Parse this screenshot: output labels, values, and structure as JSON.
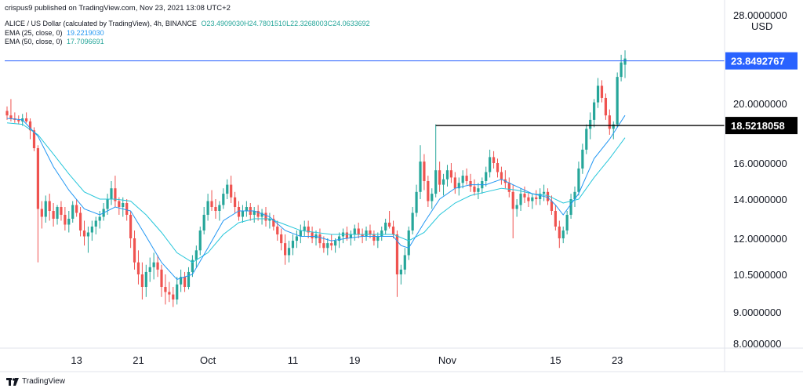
{
  "header": {
    "published": "crispus9 published on TradingView.com, Nov 23, 2021 13:08 UTC+2",
    "title": "ALICE / US Dollar (calculated by TradingView), 4h, BINANCE",
    "ohlc": {
      "open": "O23.4909030",
      "high": "H24.7801510",
      "low": "L22.3268003",
      "close": "C24.0633692"
    },
    "ema25": {
      "label": "EMA (25, close, 0)",
      "value": "19.2219030"
    },
    "ema50": {
      "label": "EMA (50, close, 0)",
      "value": "17.7096691"
    }
  },
  "footer": {
    "brand": "TradingView"
  },
  "colors": {
    "up": "#26a69a",
    "down": "#ef5350",
    "ema25": "#2196f3",
    "ema50": "#26c6da",
    "price_line": "#2962ff",
    "support_line": "#000000"
  },
  "chart_data": {
    "type": "candlestick",
    "currency": "USD",
    "y_ticks": [
      {
        "value": 28,
        "label": "28.0000000"
      },
      {
        "value": 20,
        "label": "20.0000000"
      },
      {
        "value": 16,
        "label": "16.0000000"
      },
      {
        "value": 14,
        "label": "14.0000000"
      },
      {
        "value": 12,
        "label": "12.0000000"
      },
      {
        "value": 10.5,
        "label": "10.5000000"
      },
      {
        "value": 9,
        "label": "9.0000000"
      },
      {
        "value": 8,
        "label": "8.0000000"
      }
    ],
    "x_ticks": [
      {
        "t": 13,
        "label": "13"
      },
      {
        "t": 21,
        "label": "21"
      },
      {
        "t": 30,
        "label": "Oct"
      },
      {
        "t": 41,
        "label": "11"
      },
      {
        "t": 49,
        "label": "19"
      },
      {
        "t": 61,
        "label": "Nov"
      },
      {
        "t": 75,
        "label": "15"
      },
      {
        "t": 83,
        "label": "23"
      }
    ],
    "x_range": [
      4,
      93
    ],
    "price_marker": {
      "value": 23.8492767,
      "label": "23.8492767"
    },
    "support": {
      "value": 18.5218058,
      "label": "18.5218058",
      "t_start": 59.5
    },
    "candles": [
      [
        4.0,
        19.5,
        19.8,
        18.9,
        19.2
      ],
      [
        4.5,
        19.2,
        20.4,
        18.8,
        19.0
      ],
      [
        5.0,
        19.0,
        19.4,
        18.7,
        18.9
      ],
      [
        5.5,
        18.9,
        19.2,
        18.6,
        18.8
      ],
      [
        6.0,
        18.8,
        19.3,
        18.5,
        19.0
      ],
      [
        6.5,
        19.0,
        19.4,
        18.7,
        18.8
      ],
      [
        7.0,
        18.8,
        19.0,
        17.6,
        18.2
      ],
      [
        7.5,
        18.2,
        18.4,
        16.8,
        17.0
      ],
      [
        8.0,
        17.0,
        17.2,
        11.0,
        13.5
      ],
      [
        8.5,
        13.5,
        13.9,
        12.5,
        13.1
      ],
      [
        9.0,
        13.1,
        14.2,
        12.8,
        13.9
      ],
      [
        9.5,
        13.9,
        14.3,
        12.9,
        13.4
      ],
      [
        10.0,
        13.4,
        13.8,
        12.6,
        13.0
      ],
      [
        10.5,
        13.0,
        13.7,
        12.7,
        13.6
      ],
      [
        11.0,
        13.6,
        13.9,
        12.9,
        13.2
      ],
      [
        11.5,
        13.2,
        13.6,
        12.4,
        12.7
      ],
      [
        12.0,
        12.7,
        13.4,
        12.3,
        13.0
      ],
      [
        12.5,
        13.0,
        13.9,
        12.8,
        13.7
      ],
      [
        13.0,
        13.7,
        14.0,
        13.1,
        13.3
      ],
      [
        13.5,
        13.3,
        13.6,
        12.1,
        12.4
      ],
      [
        14.0,
        12.4,
        12.9,
        11.7,
        12.1
      ],
      [
        14.5,
        12.1,
        12.6,
        11.4,
        12.3
      ],
      [
        15.0,
        12.3,
        12.9,
        11.9,
        12.6
      ],
      [
        15.5,
        12.6,
        13.1,
        12.2,
        12.9
      ],
      [
        16.0,
        12.9,
        13.4,
        12.5,
        13.1
      ],
      [
        16.5,
        13.1,
        13.8,
        12.9,
        13.5
      ],
      [
        17.0,
        13.5,
        14.3,
        13.2,
        14.0
      ],
      [
        17.5,
        14.0,
        15.0,
        13.7,
        14.6
      ],
      [
        18.0,
        14.6,
        15.3,
        13.6,
        13.9
      ],
      [
        18.5,
        13.9,
        14.1,
        13.2,
        13.6
      ],
      [
        19.0,
        13.6,
        14.1,
        13.1,
        13.8
      ],
      [
        19.5,
        13.8,
        14.0,
        12.9,
        13.2
      ],
      [
        20.0,
        13.2,
        13.4,
        11.6,
        12.0
      ],
      [
        20.5,
        12.0,
        12.4,
        10.7,
        11.0
      ],
      [
        21.0,
        11.0,
        11.5,
        10.1,
        10.5
      ],
      [
        21.5,
        10.5,
        11.0,
        9.5,
        10.0
      ],
      [
        22.0,
        10.0,
        10.9,
        9.6,
        10.6
      ],
      [
        22.5,
        10.6,
        11.2,
        10.2,
        10.8
      ],
      [
        23.0,
        10.8,
        11.4,
        10.3,
        11.0
      ],
      [
        23.5,
        11.0,
        11.3,
        10.4,
        10.7
      ],
      [
        24.0,
        10.7,
        10.9,
        9.6,
        10.0
      ],
      [
        24.5,
        10.0,
        10.5,
        9.3,
        9.8
      ],
      [
        25.0,
        9.8,
        10.2,
        9.4,
        9.7
      ],
      [
        25.5,
        9.7,
        10.0,
        9.2,
        9.5
      ],
      [
        26.0,
        9.5,
        10.4,
        9.3,
        10.1
      ],
      [
        26.5,
        10.1,
        10.7,
        9.8,
        10.4
      ],
      [
        27.0,
        10.4,
        10.6,
        9.8,
        10.0
      ],
      [
        27.5,
        10.0,
        10.8,
        9.9,
        10.6
      ],
      [
        28.0,
        10.6,
        11.3,
        10.4,
        11.1
      ],
      [
        28.5,
        11.1,
        11.7,
        10.8,
        11.5
      ],
      [
        29.0,
        11.5,
        12.6,
        11.3,
        12.4
      ],
      [
        29.5,
        12.4,
        13.6,
        12.2,
        13.2
      ],
      [
        30.0,
        13.2,
        14.3,
        12.9,
        13.9
      ],
      [
        30.5,
        13.9,
        14.5,
        13.4,
        13.6
      ],
      [
        31.0,
        13.6,
        14.0,
        13.0,
        13.4
      ],
      [
        31.5,
        13.4,
        13.9,
        12.9,
        13.7
      ],
      [
        32.0,
        13.7,
        14.6,
        13.5,
        14.3
      ],
      [
        32.5,
        14.3,
        15.1,
        14.0,
        14.8
      ],
      [
        33.0,
        14.8,
        15.3,
        13.8,
        14.1
      ],
      [
        33.5,
        14.1,
        14.4,
        13.3,
        13.6
      ],
      [
        34.0,
        13.6,
        13.9,
        12.9,
        13.1
      ],
      [
        34.5,
        13.1,
        13.7,
        12.8,
        13.4
      ],
      [
        35.0,
        13.4,
        13.9,
        13.1,
        13.6
      ],
      [
        35.5,
        13.6,
        13.8,
        12.9,
        13.2
      ],
      [
        36.0,
        13.2,
        13.6,
        12.8,
        13.4
      ],
      [
        36.5,
        13.4,
        13.7,
        12.9,
        13.1
      ],
      [
        37.0,
        13.1,
        13.5,
        12.7,
        13.3
      ],
      [
        37.5,
        13.3,
        13.6,
        12.6,
        12.9
      ],
      [
        38.0,
        12.9,
        13.3,
        12.5,
        13.0
      ],
      [
        38.5,
        13.0,
        13.2,
        12.4,
        12.6
      ],
      [
        39.0,
        12.6,
        12.9,
        11.9,
        12.2
      ],
      [
        39.5,
        12.2,
        12.5,
        11.5,
        11.8
      ],
      [
        40.0,
        11.8,
        12.2,
        10.9,
        11.3
      ],
      [
        40.5,
        11.3,
        11.9,
        11.0,
        11.6
      ],
      [
        41.0,
        11.6,
        12.2,
        11.3,
        11.9
      ],
      [
        41.5,
        11.9,
        12.4,
        11.6,
        12.1
      ],
      [
        42.0,
        12.1,
        12.7,
        11.8,
        12.4
      ],
      [
        42.5,
        12.4,
        12.9,
        12.1,
        12.6
      ],
      [
        43.0,
        12.6,
        12.9,
        12.0,
        12.3
      ],
      [
        43.5,
        12.3,
        12.6,
        11.8,
        12.0
      ],
      [
        44.0,
        12.0,
        12.4,
        11.7,
        12.2
      ],
      [
        44.5,
        12.2,
        12.5,
        11.6,
        11.8
      ],
      [
        45.0,
        11.8,
        12.1,
        11.4,
        11.6
      ],
      [
        45.5,
        11.6,
        12.0,
        11.3,
        11.8
      ],
      [
        46.0,
        11.8,
        12.2,
        11.5,
        11.7
      ],
      [
        46.5,
        11.7,
        12.0,
        11.4,
        11.9
      ],
      [
        47.0,
        11.9,
        12.3,
        11.6,
        12.1
      ],
      [
        47.5,
        12.1,
        12.5,
        11.8,
        12.3
      ],
      [
        48.0,
        12.3,
        12.6,
        11.9,
        12.0
      ],
      [
        48.5,
        12.0,
        12.4,
        11.7,
        12.2
      ],
      [
        49.0,
        12.2,
        12.7,
        11.9,
        12.5
      ],
      [
        49.5,
        12.5,
        12.8,
        12.0,
        12.2
      ],
      [
        50.0,
        12.2,
        12.5,
        11.8,
        12.1
      ],
      [
        50.5,
        12.1,
        12.6,
        11.9,
        12.4
      ],
      [
        51.0,
        12.4,
        12.7,
        12.0,
        12.2
      ],
      [
        51.5,
        12.2,
        12.4,
        11.7,
        11.9
      ],
      [
        52.0,
        11.9,
        12.3,
        11.6,
        12.1
      ],
      [
        52.5,
        12.1,
        12.6,
        11.9,
        12.4
      ],
      [
        53.0,
        12.4,
        13.0,
        12.2,
        12.8
      ],
      [
        53.5,
        12.8,
        13.4,
        12.5,
        12.6
      ],
      [
        54.0,
        12.6,
        12.9,
        12.0,
        12.2
      ],
      [
        54.5,
        12.2,
        12.4,
        9.6,
        10.5
      ],
      [
        55.0,
        10.5,
        10.9,
        10.1,
        10.7
      ],
      [
        55.5,
        10.7,
        11.6,
        10.5,
        11.3
      ],
      [
        56.0,
        11.3,
        12.6,
        11.1,
        12.4
      ],
      [
        56.5,
        12.4,
        13.6,
        12.2,
        13.3
      ],
      [
        57.0,
        13.3,
        14.8,
        13.1,
        14.4
      ],
      [
        57.5,
        14.4,
        17.2,
        14.0,
        16.1
      ],
      [
        58.0,
        16.1,
        16.6,
        14.5,
        15.0
      ],
      [
        58.5,
        15.0,
        15.3,
        13.6,
        13.9
      ],
      [
        59.0,
        13.9,
        14.6,
        13.5,
        14.3
      ],
      [
        59.5,
        14.3,
        18.6,
        14.1,
        15.6
      ],
      [
        60.0,
        15.6,
        16.1,
        14.4,
        14.8
      ],
      [
        60.5,
        14.8,
        15.4,
        14.2,
        15.1
      ],
      [
        61.0,
        15.1,
        15.9,
        14.7,
        15.6
      ],
      [
        61.5,
        15.6,
        16.0,
        14.9,
        15.2
      ],
      [
        62.0,
        15.2,
        15.5,
        14.3,
        14.6
      ],
      [
        62.5,
        14.6,
        15.2,
        14.2,
        14.9
      ],
      [
        63.0,
        14.9,
        15.6,
        14.6,
        15.3
      ],
      [
        63.5,
        15.3,
        15.7,
        14.8,
        15.0
      ],
      [
        64.0,
        15.0,
        15.4,
        14.4,
        14.7
      ],
      [
        64.5,
        14.7,
        15.1,
        14.2,
        14.4
      ],
      [
        65.0,
        14.4,
        14.9,
        14.0,
        14.6
      ],
      [
        65.5,
        14.6,
        15.2,
        14.3,
        15.0
      ],
      [
        66.0,
        15.0,
        15.8,
        14.7,
        15.5
      ],
      [
        66.5,
        15.5,
        16.9,
        15.2,
        16.4
      ],
      [
        67.0,
        16.4,
        16.8,
        15.7,
        16.0
      ],
      [
        67.5,
        16.0,
        16.3,
        15.2,
        15.5
      ],
      [
        68.0,
        15.5,
        15.8,
        14.8,
        15.1
      ],
      [
        68.5,
        15.1,
        15.6,
        14.6,
        14.9
      ],
      [
        69.0,
        14.9,
        15.2,
        14.1,
        14.4
      ],
      [
        69.5,
        14.4,
        14.8,
        12.0,
        13.5
      ],
      [
        70.0,
        13.5,
        14.0,
        13.1,
        13.7
      ],
      [
        70.5,
        13.7,
        14.6,
        13.4,
        14.3
      ],
      [
        71.0,
        14.3,
        14.7,
        13.8,
        14.1
      ],
      [
        71.5,
        14.1,
        14.4,
        13.6,
        13.9
      ],
      [
        72.0,
        13.9,
        14.3,
        13.5,
        14.1
      ],
      [
        72.5,
        14.1,
        14.5,
        13.7,
        14.0
      ],
      [
        73.0,
        14.0,
        14.6,
        13.7,
        14.3
      ],
      [
        73.5,
        14.3,
        14.8,
        13.9,
        14.4
      ],
      [
        74.0,
        14.4,
        14.6,
        13.7,
        13.9
      ],
      [
        74.5,
        13.9,
        14.2,
        13.2,
        13.4
      ],
      [
        75.0,
        13.4,
        13.7,
        12.4,
        12.6
      ],
      [
        75.5,
        12.6,
        12.9,
        11.6,
        12.0
      ],
      [
        76.0,
        12.0,
        12.6,
        11.8,
        12.4
      ],
      [
        76.5,
        12.4,
        13.4,
        12.2,
        13.2
      ],
      [
        77.0,
        13.2,
        14.3,
        13.0,
        14.0
      ],
      [
        77.5,
        14.0,
        14.7,
        13.6,
        14.4
      ],
      [
        78.0,
        14.4,
        16.1,
        14.2,
        15.7
      ],
      [
        78.5,
        15.7,
        17.3,
        15.4,
        16.9
      ],
      [
        79.0,
        16.9,
        18.6,
        16.6,
        18.3
      ],
      [
        79.5,
        18.3,
        19.4,
        17.6,
        18.9
      ],
      [
        80.0,
        18.9,
        20.4,
        18.4,
        20.1
      ],
      [
        80.5,
        20.1,
        22.3,
        19.7,
        21.6
      ],
      [
        81.0,
        21.6,
        22.1,
        20.1,
        20.5
      ],
      [
        81.5,
        20.5,
        20.9,
        18.9,
        19.2
      ],
      [
        82.0,
        19.2,
        19.6,
        17.9,
        18.3
      ],
      [
        82.5,
        18.3,
        18.8,
        17.6,
        18.6
      ],
      [
        83.0,
        18.6,
        22.8,
        18.4,
        22.4
      ],
      [
        83.5,
        22.4,
        24.4,
        22.0,
        23.7
      ],
      [
        84.0,
        23.5,
        24.8,
        22.3,
        24.06
      ]
    ],
    "ema25": [
      [
        4,
        19.0
      ],
      [
        6,
        18.9
      ],
      [
        8,
        17.8
      ],
      [
        10,
        15.8
      ],
      [
        12,
        14.5
      ],
      [
        14,
        13.5
      ],
      [
        16,
        13.2
      ],
      [
        18,
        13.6
      ],
      [
        20,
        13.4
      ],
      [
        22,
        12.1
      ],
      [
        24,
        11.0
      ],
      [
        26,
        10.3
      ],
      [
        28,
        10.5
      ],
      [
        30,
        11.6
      ],
      [
        32,
        12.9
      ],
      [
        34,
        13.4
      ],
      [
        36,
        13.4
      ],
      [
        38,
        13.1
      ],
      [
        40,
        12.4
      ],
      [
        42,
        12.1
      ],
      [
        44,
        12.1
      ],
      [
        46,
        11.9
      ],
      [
        48,
        12.0
      ],
      [
        50,
        12.1
      ],
      [
        52,
        12.1
      ],
      [
        54,
        12.1
      ],
      [
        55,
        11.7
      ],
      [
        56,
        11.6
      ],
      [
        58,
        12.8
      ],
      [
        60,
        14.0
      ],
      [
        62,
        14.6
      ],
      [
        64,
        14.8
      ],
      [
        66,
        14.8
      ],
      [
        68,
        15.1
      ],
      [
        70,
        14.7
      ],
      [
        72,
        14.3
      ],
      [
        74,
        14.1
      ],
      [
        75,
        13.7
      ],
      [
        76,
        13.2
      ],
      [
        78,
        14.3
      ],
      [
        80,
        16.3
      ],
      [
        82,
        17.6
      ],
      [
        83,
        18.4
      ],
      [
        84,
        19.2
      ]
    ],
    "ema50": [
      [
        4,
        18.7
      ],
      [
        6,
        18.6
      ],
      [
        8,
        17.9
      ],
      [
        10,
        16.6
      ],
      [
        12,
        15.4
      ],
      [
        14,
        14.4
      ],
      [
        16,
        14.0
      ],
      [
        18,
        14.0
      ],
      [
        20,
        13.9
      ],
      [
        22,
        13.2
      ],
      [
        24,
        12.3
      ],
      [
        26,
        11.4
      ],
      [
        28,
        11.0
      ],
      [
        30,
        11.4
      ],
      [
        32,
        12.2
      ],
      [
        34,
        12.8
      ],
      [
        36,
        13.0
      ],
      [
        38,
        13.0
      ],
      [
        40,
        12.7
      ],
      [
        42,
        12.4
      ],
      [
        44,
        12.3
      ],
      [
        46,
        12.2
      ],
      [
        48,
        12.2
      ],
      [
        50,
        12.2
      ],
      [
        52,
        12.2
      ],
      [
        54,
        12.2
      ],
      [
        56,
        11.9
      ],
      [
        58,
        12.3
      ],
      [
        60,
        13.2
      ],
      [
        62,
        13.8
      ],
      [
        64,
        14.2
      ],
      [
        66,
        14.4
      ],
      [
        68,
        14.6
      ],
      [
        70,
        14.5
      ],
      [
        72,
        14.3
      ],
      [
        74,
        14.2
      ],
      [
        76,
        13.8
      ],
      [
        78,
        14.0
      ],
      [
        80,
        15.2
      ],
      [
        82,
        16.3
      ],
      [
        83,
        17.0
      ],
      [
        84,
        17.7
      ]
    ]
  }
}
